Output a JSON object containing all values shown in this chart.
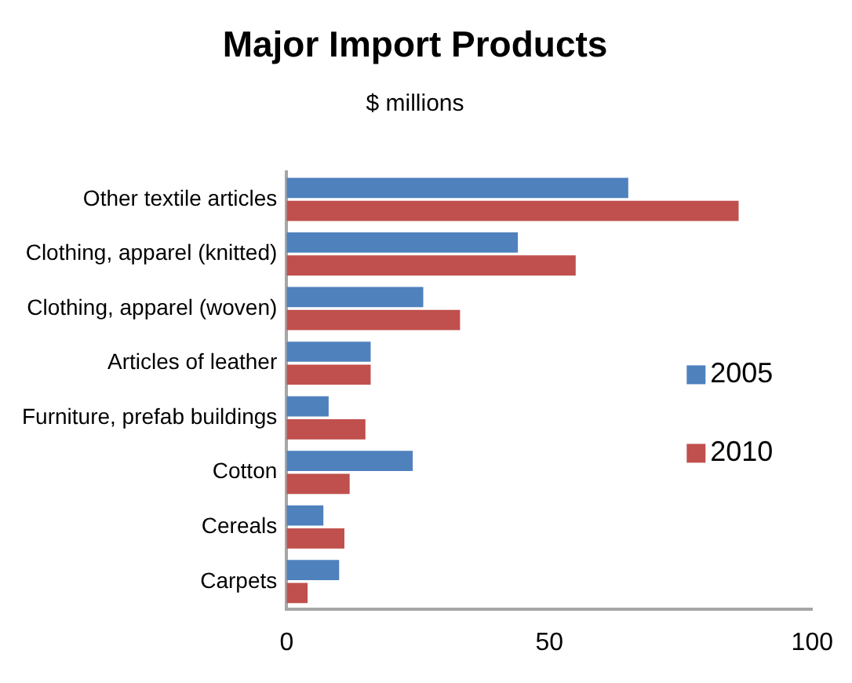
{
  "chart_data": {
    "type": "bar",
    "orientation": "horizontal",
    "title": "Major Import Products",
    "subtitle": "$ millions",
    "categories": [
      "Other textile articles",
      "Clothing, apparel (knitted)",
      "Clothing, apparel (woven)",
      "Articles of leather",
      "Furniture, prefab buildings",
      "Cotton",
      "Cereals",
      "Carpets"
    ],
    "series": [
      {
        "name": "2005",
        "color": "#4f81bd",
        "values": [
          65,
          44,
          26,
          16,
          8,
          24,
          7,
          10
        ]
      },
      {
        "name": "2010",
        "color": "#c0504d",
        "values": [
          86,
          55,
          33,
          16,
          15,
          12,
          11,
          4
        ]
      }
    ],
    "xlim": [
      0,
      100
    ],
    "xticks": [
      0,
      50,
      100
    ],
    "grid": false,
    "legend": "right"
  }
}
